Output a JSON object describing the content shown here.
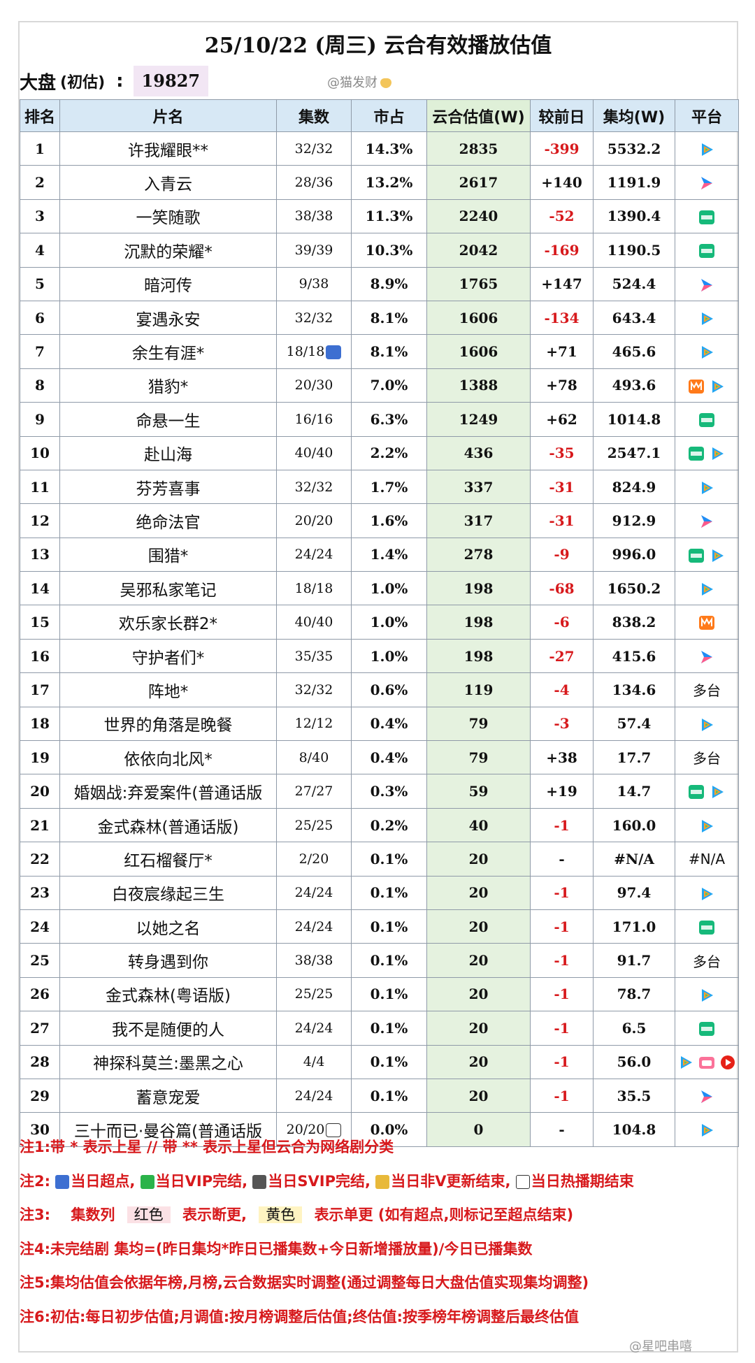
{
  "header": {
    "title": "25/10/22 (周三) 云合有效播放估值",
    "summary_label": "大盘",
    "summary_sublabel": "(初估)",
    "summary_colon": ":",
    "summary_value": "19827",
    "watermark": "@猫发财"
  },
  "table": {
    "columns": [
      "排名",
      "片名",
      "集数",
      "市占",
      "云合估值(W)",
      "较前日",
      "集均(W)",
      "平台"
    ],
    "rows": [
      {
        "rank": "1",
        "name": "许我耀眼**",
        "eps": "32/32",
        "share": "14.3%",
        "est": "2835",
        "chg": "-399",
        "avg": "5532.2",
        "platforms": [
          "tencent"
        ],
        "plat_text": ""
      },
      {
        "rank": "2",
        "name": "入青云",
        "eps": "28/36",
        "share": "13.2%",
        "est": "2617",
        "chg": "+140",
        "avg": "1191.9",
        "platforms": [
          "youku"
        ],
        "plat_text": ""
      },
      {
        "rank": "3",
        "name": "一笑随歌",
        "eps": "38/38",
        "share": "11.3%",
        "est": "2240",
        "chg": "-52",
        "avg": "1390.4",
        "platforms": [
          "iqiyi"
        ],
        "plat_text": ""
      },
      {
        "rank": "4",
        "name": "沉默的荣耀*",
        "eps": "39/39",
        "share": "10.3%",
        "est": "2042",
        "chg": "-169",
        "avg": "1190.5",
        "platforms": [
          "iqiyi"
        ],
        "plat_text": ""
      },
      {
        "rank": "5",
        "name": "暗河传",
        "eps": "9/38",
        "share": "8.9%",
        "est": "1765",
        "chg": "+147",
        "avg": "524.4",
        "platforms": [
          "youku"
        ],
        "plat_text": ""
      },
      {
        "rank": "6",
        "name": "宴遇永安",
        "eps": "32/32",
        "share": "8.1%",
        "est": "1606",
        "chg": "-134",
        "avg": "643.4",
        "platforms": [
          "tencent"
        ],
        "plat_text": ""
      },
      {
        "rank": "7",
        "name": "余生有涯*",
        "eps": "18/18",
        "share": "8.1%",
        "est": "1606",
        "chg": "+71",
        "avg": "465.6",
        "platforms": [
          "tencent"
        ],
        "plat_text": "",
        "mark": "super"
      },
      {
        "rank": "8",
        "name": "猎豹*",
        "eps": "20/30",
        "share": "7.0%",
        "est": "1388",
        "chg": "+78",
        "avg": "493.6",
        "platforms": [
          "mgtv",
          "tencent"
        ],
        "plat_text": ""
      },
      {
        "rank": "9",
        "name": "命悬一生",
        "eps": "16/16",
        "share": "6.3%",
        "est": "1249",
        "chg": "+62",
        "avg": "1014.8",
        "platforms": [
          "iqiyi"
        ],
        "plat_text": ""
      },
      {
        "rank": "10",
        "name": "赴山海",
        "eps": "40/40",
        "share": "2.2%",
        "est": "436",
        "chg": "-35",
        "avg": "2547.1",
        "platforms": [
          "iqiyi",
          "tencent"
        ],
        "plat_text": ""
      },
      {
        "rank": "11",
        "name": "芬芳喜事",
        "eps": "32/32",
        "share": "1.7%",
        "est": "337",
        "chg": "-31",
        "avg": "824.9",
        "platforms": [
          "tencent"
        ],
        "plat_text": ""
      },
      {
        "rank": "12",
        "name": "绝命法官",
        "eps": "20/20",
        "share": "1.6%",
        "est": "317",
        "chg": "-31",
        "avg": "912.9",
        "platforms": [
          "youku"
        ],
        "plat_text": ""
      },
      {
        "rank": "13",
        "name": "围猎*",
        "eps": "24/24",
        "share": "1.4%",
        "est": "278",
        "chg": "-9",
        "avg": "996.0",
        "platforms": [
          "iqiyi",
          "tencent"
        ],
        "plat_text": ""
      },
      {
        "rank": "14",
        "name": "吴邪私家笔记",
        "eps": "18/18",
        "share": "1.0%",
        "est": "198",
        "chg": "-68",
        "avg": "1650.2",
        "platforms": [
          "tencent"
        ],
        "plat_text": ""
      },
      {
        "rank": "15",
        "name": "欢乐家长群2*",
        "eps": "40/40",
        "share": "1.0%",
        "est": "198",
        "chg": "-6",
        "avg": "838.2",
        "platforms": [
          "mgtv"
        ],
        "plat_text": ""
      },
      {
        "rank": "16",
        "name": "守护者们*",
        "eps": "35/35",
        "share": "1.0%",
        "est": "198",
        "chg": "-27",
        "avg": "415.6",
        "platforms": [
          "youku"
        ],
        "plat_text": ""
      },
      {
        "rank": "17",
        "name": "阵地*",
        "eps": "32/32",
        "share": "0.6%",
        "est": "119",
        "chg": "-4",
        "avg": "134.6",
        "platforms": [],
        "plat_text": "多台"
      },
      {
        "rank": "18",
        "name": "世界的角落是晚餐",
        "eps": "12/12",
        "share": "0.4%",
        "est": "79",
        "chg": "-3",
        "avg": "57.4",
        "platforms": [
          "tencent"
        ],
        "plat_text": ""
      },
      {
        "rank": "19",
        "name": "依依向北风*",
        "eps": "8/40",
        "share": "0.4%",
        "est": "79",
        "chg": "+38",
        "avg": "17.7",
        "platforms": [],
        "plat_text": "多台"
      },
      {
        "rank": "20",
        "name": "婚姻战:弃爱案件(普通话版",
        "eps": "27/27",
        "share": "0.3%",
        "est": "59",
        "chg": "+19",
        "avg": "14.7",
        "platforms": [
          "iqiyi",
          "tencent"
        ],
        "plat_text": ""
      },
      {
        "rank": "21",
        "name": "金式森林(普通话版)",
        "eps": "25/25",
        "share": "0.2%",
        "est": "40",
        "chg": "-1",
        "avg": "160.0",
        "platforms": [
          "tencent"
        ],
        "plat_text": ""
      },
      {
        "rank": "22",
        "name": "红石榴餐厅*",
        "eps": "2/20",
        "share": "0.1%",
        "est": "20",
        "chg": "-",
        "avg": "#N/A",
        "platforms": [],
        "plat_text": "#N/A"
      },
      {
        "rank": "23",
        "name": "白夜宸缘起三生",
        "eps": "24/24",
        "share": "0.1%",
        "est": "20",
        "chg": "-1",
        "avg": "97.4",
        "platforms": [
          "tencent"
        ],
        "plat_text": ""
      },
      {
        "rank": "24",
        "name": "以她之名",
        "eps": "24/24",
        "share": "0.1%",
        "est": "20",
        "chg": "-1",
        "avg": "171.0",
        "platforms": [
          "iqiyi"
        ],
        "plat_text": ""
      },
      {
        "rank": "25",
        "name": "转身遇到你",
        "eps": "38/38",
        "share": "0.1%",
        "est": "20",
        "chg": "-1",
        "avg": "91.7",
        "platforms": [],
        "plat_text": "多台"
      },
      {
        "rank": "26",
        "name": "金式森林(粤语版)",
        "eps": "25/25",
        "share": "0.1%",
        "est": "20",
        "chg": "-1",
        "avg": "78.7",
        "platforms": [
          "tencent"
        ],
        "plat_text": ""
      },
      {
        "rank": "27",
        "name": "我不是随便的人",
        "eps": "24/24",
        "share": "0.1%",
        "est": "20",
        "chg": "-1",
        "avg": "6.5",
        "platforms": [
          "iqiyi"
        ],
        "plat_text": ""
      },
      {
        "rank": "28",
        "name": "神探科莫兰:墨黑之心",
        "eps": "4/4",
        "share": "0.1%",
        "est": "20",
        "chg": "-1",
        "avg": "56.0",
        "platforms": [
          "tencent",
          "bilibili",
          "youtube"
        ],
        "plat_text": ""
      },
      {
        "rank": "29",
        "name": "蓄意宠爱",
        "eps": "24/24",
        "share": "0.1%",
        "est": "20",
        "chg": "-1",
        "avg": "35.5",
        "platforms": [
          "youku"
        ],
        "plat_text": ""
      },
      {
        "rank": "30",
        "name": "三十而已·曼谷篇(普通话版",
        "eps": "20/20",
        "share": "0.0%",
        "est": "0",
        "chg": "-",
        "avg": "104.8",
        "platforms": [
          "tencent"
        ],
        "plat_text": "",
        "mark": "end"
      }
    ]
  },
  "notes": {
    "n1": "注1:带 * 表示上星 // 带 ** 表示上星但云合为网络剧分类",
    "n2_prefix": "注2:",
    "n2_items": [
      "当日超点,",
      "当日VIP完结,",
      "当日SVIP完结,",
      "当日非V更新结束,",
      "当日热播期结束"
    ],
    "n3_prefix": "注3:",
    "n3_a": "集数列",
    "n3_red": "红色",
    "n3_b": "表示断更,",
    "n3_yellow": "黄色",
    "n3_c": "表示单更 (如有超点,则标记至超点结束)",
    "n4": "注4:未完结剧 集均=(昨日集均*昨日已播集数+今日新增播放量)/今日已播集数",
    "n5": "注5:集均估值会依据年榜,月榜,云合数据实时调整(通过调整每日大盘估值实现集均调整)",
    "n6": "注6:初估:每日初步估值;月调值:按月榜调整后估值;终估值:按季榜年榜调整后最终估值"
  },
  "credit": "@星吧串嘻",
  "colors": {
    "negative": "#d7191c",
    "header_bg": "#d7e8f5",
    "estimate_bg": "#e5f2df",
    "summary_bg": "#f2e6f4"
  }
}
